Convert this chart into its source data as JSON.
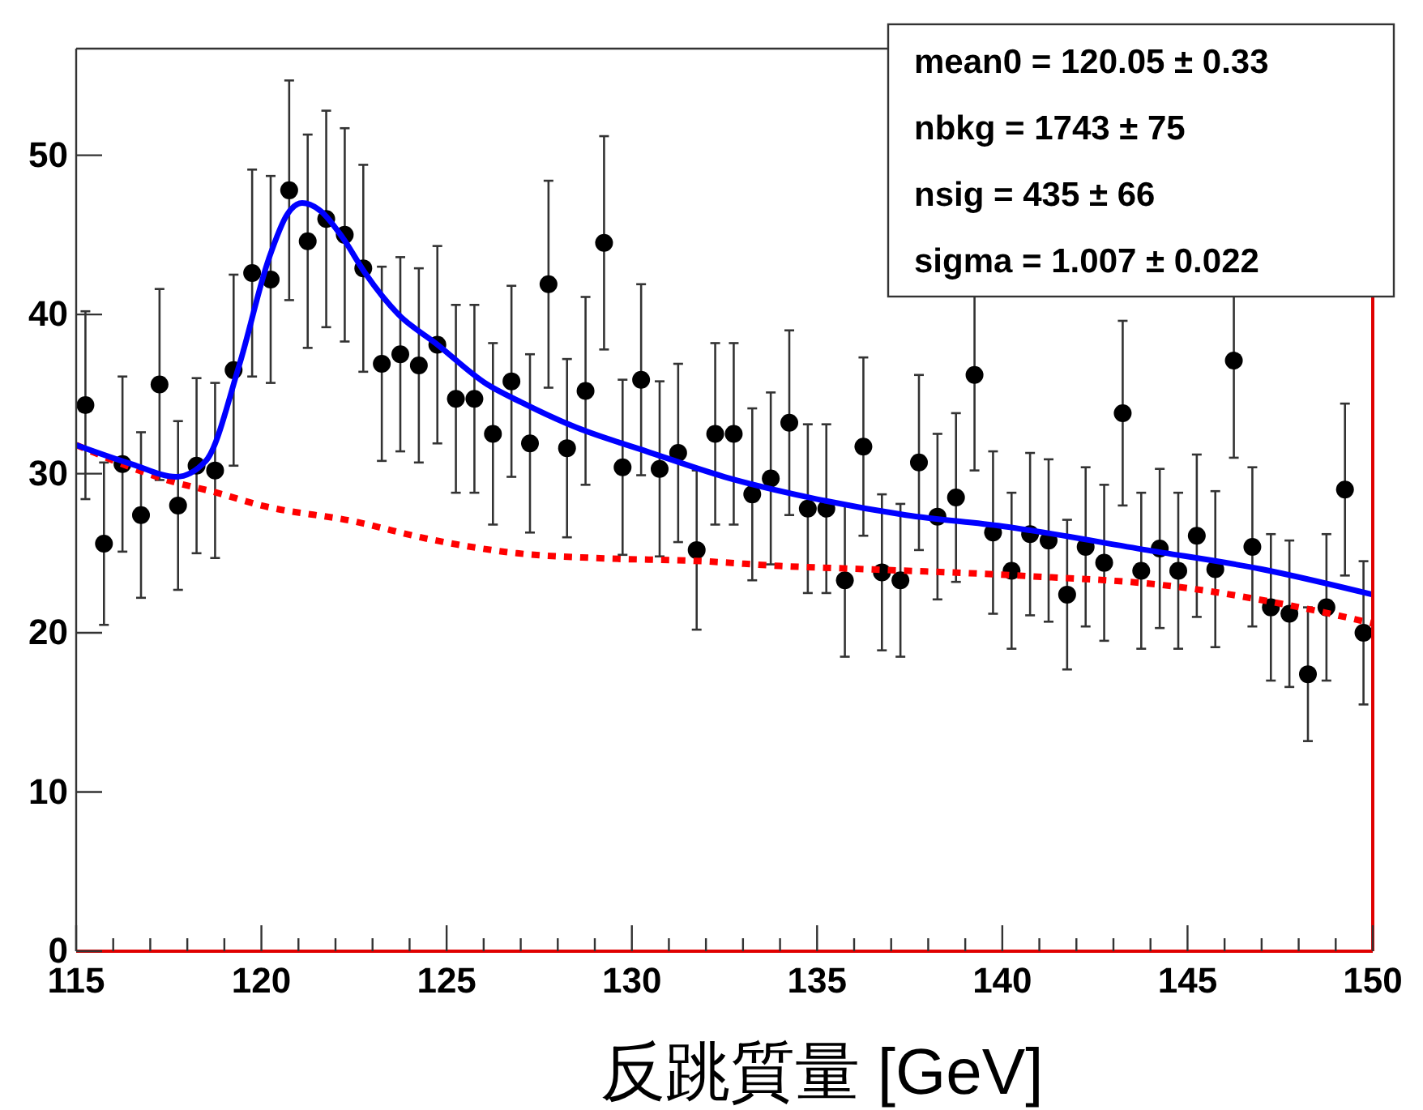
{
  "chart_data": {
    "type": "scatter",
    "xlabel": "反跳質量 [GeV]",
    "xlim": [
      115,
      150
    ],
    "xticks": [
      115,
      120,
      125,
      130,
      135,
      140,
      145,
      150
    ],
    "ylim": [
      0,
      56.7
    ],
    "yticks": [
      0,
      10,
      20,
      30,
      40,
      50
    ],
    "grid": false,
    "annotations": [
      "mean0 =  120.05 ± 0.33",
      "nbkg =  1743 ± 75",
      "nsig =  435 ± 66",
      "sigma =  1.007 ± 0.022"
    ],
    "series": [
      {
        "color": "#000000",
        "marker": "circle",
        "x": [
          115.25,
          115.75,
          116.25,
          116.75,
          117.25,
          117.75,
          118.25,
          118.75,
          119.25,
          119.75,
          120.25,
          120.75,
          121.25,
          121.75,
          122.25,
          122.75,
          123.25,
          123.75,
          124.25,
          124.75,
          125.25,
          125.75,
          126.25,
          126.75,
          127.25,
          127.75,
          128.25,
          128.75,
          129.25,
          129.75,
          130.25,
          130.75,
          131.25,
          131.75,
          132.25,
          132.75,
          133.25,
          133.75,
          134.25,
          134.75,
          135.25,
          135.75,
          136.25,
          136.75,
          137.25,
          137.75,
          138.25,
          138.75,
          139.25,
          139.75,
          140.25,
          140.75,
          141.25,
          141.75,
          142.25,
          142.75,
          143.25,
          143.75,
          144.25,
          144.75,
          145.25,
          145.75,
          146.25,
          146.75,
          147.25,
          147.75,
          148.25,
          148.75,
          149.25,
          149.75
        ],
        "values": [
          34.3,
          25.6,
          30.6,
          27.4,
          35.6,
          28.0,
          30.5,
          30.2,
          36.5,
          42.6,
          42.2,
          47.8,
          44.6,
          46.0,
          45.0,
          42.9,
          36.9,
          37.5,
          36.8,
          38.1,
          34.7,
          34.7,
          32.5,
          35.8,
          31.9,
          41.9,
          31.6,
          35.2,
          44.5,
          30.4,
          35.9,
          30.3,
          31.3,
          25.2,
          32.5,
          32.5,
          28.7,
          29.7,
          33.2,
          27.8,
          27.8,
          23.3,
          31.7,
          23.8,
          23.3,
          30.7,
          27.3,
          28.5,
          36.2,
          26.3,
          23.9,
          26.2,
          25.8,
          22.4,
          25.4,
          24.4,
          33.8,
          23.9,
          25.3,
          23.9,
          26.1,
          24.0,
          37.1,
          25.4,
          21.6,
          21.2,
          17.4,
          21.6,
          29.0,
          20.0
        ],
        "errors": [
          5.9,
          5.1,
          5.5,
          5.2,
          6.0,
          5.3,
          5.5,
          5.5,
          6.0,
          6.5,
          6.5,
          6.9,
          6.7,
          6.8,
          6.7,
          6.5,
          6.1,
          6.1,
          6.1,
          6.2,
          5.9,
          5.9,
          5.7,
          6.0,
          5.6,
          6.5,
          5.6,
          5.9,
          6.7,
          5.5,
          6.0,
          5.5,
          5.6,
          5.0,
          5.7,
          5.7,
          5.4,
          5.4,
          5.8,
          5.3,
          5.3,
          4.8,
          5.6,
          4.9,
          4.8,
          5.5,
          5.2,
          5.3,
          6.0,
          5.1,
          4.9,
          5.1,
          5.1,
          4.7,
          5.0,
          4.9,
          5.8,
          4.9,
          5.0,
          4.9,
          5.1,
          4.9,
          6.1,
          5.0,
          4.6,
          4.6,
          4.2,
          4.6,
          5.4,
          4.5
        ]
      },
      {
        "type": "line",
        "color": "#ff0000",
        "line_style": "dotted",
        "x": [
          115,
          117.6,
          118.8,
          120,
          122.5,
          124.5,
          126.9,
          129,
          131.9,
          134,
          136.3,
          140.4,
          144.7,
          147.6,
          150
        ],
        "values": [
          31.8,
          29.5,
          28.8,
          28.0,
          27.0,
          25.9,
          25.0,
          24.7,
          24.5,
          24.2,
          24.0,
          23.6,
          22.9,
          21.8,
          20.6
        ]
      },
      {
        "type": "line",
        "color": "#0000ff",
        "line_style": "solid",
        "x": [
          115,
          116.5,
          117.7,
          118.5,
          119.4,
          120.2,
          120.7,
          121.1,
          121.6,
          122.2,
          122.8,
          123.7,
          124.7,
          126.1,
          127,
          128.5,
          130.4,
          132.5,
          134.8,
          137.4,
          140,
          143.9,
          147,
          150
        ],
        "values": [
          31.8,
          30.6,
          29.8,
          30.8,
          36.8,
          43.5,
          46.3,
          47.0,
          46.5,
          44.8,
          42.6,
          40.0,
          38.2,
          35.6,
          34.5,
          32.9,
          31.4,
          29.8,
          28.5,
          27.4,
          26.7,
          25.2,
          24.0,
          22.4
        ]
      }
    ]
  }
}
